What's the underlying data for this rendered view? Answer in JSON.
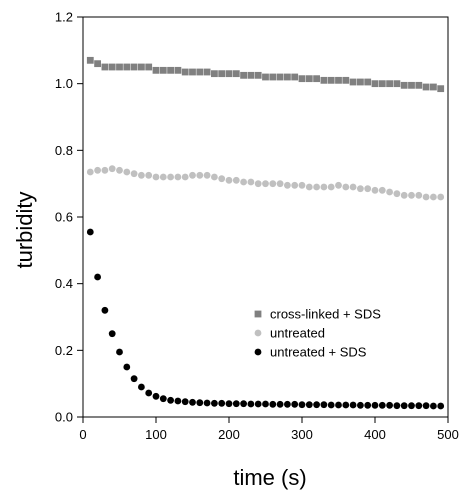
{
  "chart_data": {
    "type": "scatter",
    "xlabel": "time (s)",
    "ylabel": "turbidity",
    "xlim": [
      0,
      500
    ],
    "ylim": [
      0,
      1.2
    ],
    "x_ticks": [
      0,
      100,
      200,
      300,
      400,
      500
    ],
    "y_ticks": [
      0.0,
      0.2,
      0.4,
      0.6,
      0.8,
      1.0,
      1.2
    ],
    "x_tick_labels": [
      "0",
      "100",
      "200",
      "300",
      "400",
      "500"
    ],
    "y_tick_labels": [
      "0.0",
      "0.2",
      "0.4",
      "0.6",
      "0.8",
      "1.0",
      "1.2"
    ],
    "grid": false,
    "legend_position": "lower-right",
    "series": [
      {
        "name": "cross-linked + SDS",
        "marker": "square",
        "color": "#808080",
        "points": [
          [
            10,
            1.07
          ],
          [
            20,
            1.06
          ],
          [
            30,
            1.05
          ],
          [
            40,
            1.05
          ],
          [
            50,
            1.05
          ],
          [
            60,
            1.05
          ],
          [
            70,
            1.05
          ],
          [
            80,
            1.05
          ],
          [
            90,
            1.05
          ],
          [
            100,
            1.04
          ],
          [
            110,
            1.04
          ],
          [
            120,
            1.04
          ],
          [
            130,
            1.04
          ],
          [
            140,
            1.035
          ],
          [
            150,
            1.035
          ],
          [
            160,
            1.035
          ],
          [
            170,
            1.035
          ],
          [
            180,
            1.03
          ],
          [
            190,
            1.03
          ],
          [
            200,
            1.03
          ],
          [
            210,
            1.03
          ],
          [
            220,
            1.025
          ],
          [
            230,
            1.025
          ],
          [
            240,
            1.025
          ],
          [
            250,
            1.02
          ],
          [
            260,
            1.02
          ],
          [
            270,
            1.02
          ],
          [
            280,
            1.02
          ],
          [
            290,
            1.02
          ],
          [
            300,
            1.015
          ],
          [
            310,
            1.015
          ],
          [
            320,
            1.015
          ],
          [
            330,
            1.01
          ],
          [
            340,
            1.01
          ],
          [
            350,
            1.01
          ],
          [
            360,
            1.01
          ],
          [
            370,
            1.005
          ],
          [
            380,
            1.005
          ],
          [
            390,
            1.005
          ],
          [
            400,
            1.0
          ],
          [
            410,
            1.0
          ],
          [
            420,
            1.0
          ],
          [
            430,
            1.0
          ],
          [
            440,
            0.995
          ],
          [
            450,
            0.995
          ],
          [
            460,
            0.995
          ],
          [
            470,
            0.99
          ],
          [
            480,
            0.99
          ],
          [
            490,
            0.985
          ]
        ]
      },
      {
        "name": "untreated",
        "marker": "circle",
        "color": "#c0c0c0",
        "points": [
          [
            10,
            0.735
          ],
          [
            20,
            0.74
          ],
          [
            30,
            0.74
          ],
          [
            40,
            0.745
          ],
          [
            50,
            0.74
          ],
          [
            60,
            0.735
          ],
          [
            70,
            0.73
          ],
          [
            80,
            0.725
          ],
          [
            90,
            0.725
          ],
          [
            100,
            0.72
          ],
          [
            110,
            0.72
          ],
          [
            120,
            0.72
          ],
          [
            130,
            0.72
          ],
          [
            140,
            0.72
          ],
          [
            150,
            0.725
          ],
          [
            160,
            0.725
          ],
          [
            170,
            0.725
          ],
          [
            180,
            0.72
          ],
          [
            190,
            0.715
          ],
          [
            200,
            0.71
          ],
          [
            210,
            0.71
          ],
          [
            220,
            0.705
          ],
          [
            230,
            0.705
          ],
          [
            240,
            0.7
          ],
          [
            250,
            0.7
          ],
          [
            260,
            0.7
          ],
          [
            270,
            0.7
          ],
          [
            280,
            0.695
          ],
          [
            290,
            0.695
          ],
          [
            300,
            0.695
          ],
          [
            310,
            0.69
          ],
          [
            320,
            0.69
          ],
          [
            330,
            0.69
          ],
          [
            340,
            0.69
          ],
          [
            350,
            0.695
          ],
          [
            360,
            0.69
          ],
          [
            370,
            0.69
          ],
          [
            380,
            0.685
          ],
          [
            390,
            0.685
          ],
          [
            400,
            0.68
          ],
          [
            410,
            0.68
          ],
          [
            420,
            0.675
          ],
          [
            430,
            0.67
          ],
          [
            440,
            0.665
          ],
          [
            450,
            0.665
          ],
          [
            460,
            0.665
          ],
          [
            470,
            0.66
          ],
          [
            480,
            0.66
          ],
          [
            490,
            0.66
          ]
        ]
      },
      {
        "name": "untreated + SDS",
        "marker": "circle",
        "color": "#000000",
        "points": [
          [
            10,
            0.555
          ],
          [
            20,
            0.42
          ],
          [
            30,
            0.32
          ],
          [
            40,
            0.25
          ],
          [
            50,
            0.195
          ],
          [
            60,
            0.15
          ],
          [
            70,
            0.115
          ],
          [
            80,
            0.09
          ],
          [
            90,
            0.072
          ],
          [
            100,
            0.062
          ],
          [
            110,
            0.055
          ],
          [
            120,
            0.05
          ],
          [
            130,
            0.048
          ],
          [
            140,
            0.046
          ],
          [
            150,
            0.044
          ],
          [
            160,
            0.043
          ],
          [
            170,
            0.042
          ],
          [
            180,
            0.041
          ],
          [
            190,
            0.041
          ],
          [
            200,
            0.04
          ],
          [
            210,
            0.04
          ],
          [
            220,
            0.04
          ],
          [
            230,
            0.039
          ],
          [
            240,
            0.039
          ],
          [
            250,
            0.039
          ],
          [
            260,
            0.038
          ],
          [
            270,
            0.038
          ],
          [
            280,
            0.038
          ],
          [
            290,
            0.038
          ],
          [
            300,
            0.037
          ],
          [
            310,
            0.037
          ],
          [
            320,
            0.037
          ],
          [
            330,
            0.037
          ],
          [
            340,
            0.036
          ],
          [
            350,
            0.036
          ],
          [
            360,
            0.036
          ],
          [
            370,
            0.036
          ],
          [
            380,
            0.035
          ],
          [
            390,
            0.035
          ],
          [
            400,
            0.035
          ],
          [
            410,
            0.035
          ],
          [
            420,
            0.035
          ],
          [
            430,
            0.034
          ],
          [
            440,
            0.034
          ],
          [
            450,
            0.034
          ],
          [
            460,
            0.034
          ],
          [
            470,
            0.034
          ],
          [
            480,
            0.033
          ],
          [
            490,
            0.033
          ]
        ]
      }
    ]
  }
}
